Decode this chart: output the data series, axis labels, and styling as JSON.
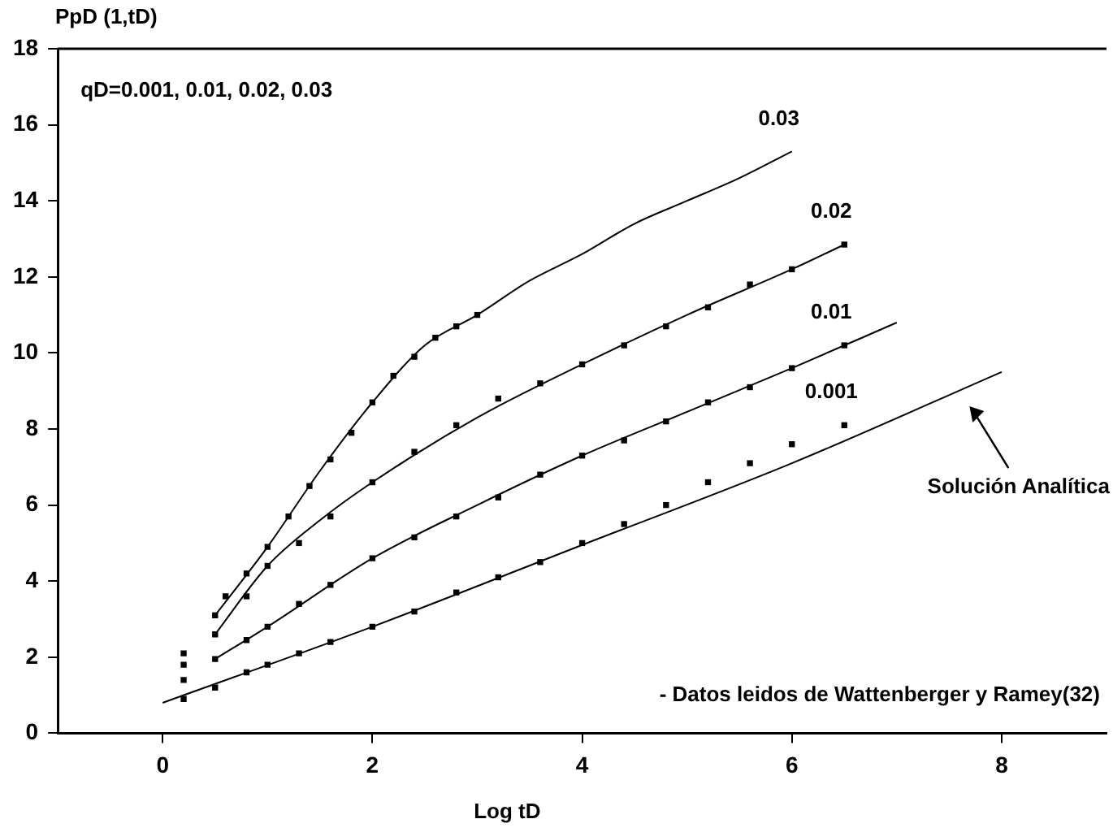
{
  "chart_data": {
    "type": "scatter",
    "ylabel": "PpD (1,tD)",
    "xlabel": "Log tD",
    "xlim": [
      -1,
      9
    ],
    "xticks": [
      0,
      2,
      4,
      6,
      8
    ],
    "ylim": [
      0,
      18
    ],
    "yticks": [
      0,
      2,
      4,
      6,
      8,
      10,
      12,
      14,
      16,
      18
    ],
    "grid": false,
    "legend": false,
    "series": [
      {
        "type": "line",
        "marker": "none",
        "color": "#000000",
        "x": [
          0,
          2,
          4,
          6,
          8
        ],
        "values": [
          0.8,
          2.8,
          4.95,
          7.1,
          9.5
        ]
      },
      {
        "type": "line",
        "marker": "none",
        "color": "#000000",
        "x": [
          0.5,
          1,
          2,
          3,
          4,
          5,
          6,
          7
        ],
        "values": [
          1.95,
          2.8,
          4.6,
          6.0,
          7.3,
          8.45,
          9.6,
          10.8
        ]
      },
      {
        "type": "line",
        "marker": "none",
        "color": "#000000",
        "x": [
          0.5,
          1,
          1.5,
          2,
          3,
          4,
          5,
          6,
          6.5
        ],
        "values": [
          2.6,
          4.4,
          5.6,
          6.6,
          8.3,
          9.7,
          11.0,
          12.2,
          12.85
        ]
      },
      {
        "type": "line",
        "name": "0.03",
        "marker": "none",
        "color": "#000000",
        "x": [
          0.5,
          1,
          1.5,
          2,
          2.5,
          3,
          3.5,
          4,
          4.5,
          5,
          5.5,
          6
        ],
        "values": [
          3.1,
          4.9,
          6.9,
          8.7,
          10.2,
          11.0,
          11.9,
          12.6,
          13.4,
          14.0,
          14.6,
          15.3
        ]
      },
      {
        "name": "0.001",
        "marker": "square",
        "color": "#000000",
        "x": [
          0.2,
          0.5,
          0.8,
          1.0,
          1.3,
          1.6,
          2.0,
          2.4,
          2.8,
          3.2,
          3.6,
          4.0,
          4.4,
          4.8,
          5.2,
          5.6,
          6.0,
          6.5
        ],
        "values": [
          0.9,
          1.2,
          1.6,
          1.8,
          2.1,
          2.4,
          2.8,
          3.2,
          3.7,
          4.1,
          4.5,
          5.0,
          5.5,
          6.0,
          6.6,
          7.1,
          7.6,
          8.1
        ]
      },
      {
        "name": "0.01",
        "marker": "square",
        "color": "#000000",
        "x": [
          0.2,
          0.5,
          0.8,
          1.0,
          1.3,
          1.6,
          2.0,
          2.4,
          2.8,
          3.2,
          3.6,
          4.0,
          4.4,
          4.8,
          5.2,
          5.6,
          6.0,
          6.5
        ],
        "values": [
          1.4,
          1.95,
          2.45,
          2.8,
          3.4,
          3.9,
          4.6,
          5.15,
          5.7,
          6.2,
          6.8,
          7.3,
          7.7,
          8.2,
          8.7,
          9.1,
          9.6,
          10.2
        ]
      },
      {
        "name": "0.02",
        "marker": "square",
        "color": "#000000",
        "x": [
          0.2,
          0.5,
          0.8,
          1.0,
          1.3,
          1.6,
          2.0,
          2.4,
          2.8,
          3.2,
          3.6,
          4.0,
          4.4,
          4.8,
          5.2,
          5.6,
          6.0,
          6.5
        ],
        "values": [
          1.8,
          2.6,
          3.6,
          4.4,
          5.0,
          5.7,
          6.6,
          7.4,
          8.1,
          8.8,
          9.2,
          9.7,
          10.2,
          10.7,
          11.2,
          11.8,
          12.2,
          12.85
        ]
      },
      {
        "marker": "square",
        "color": "#000000",
        "x": [
          0.2,
          0.5,
          0.6,
          0.8,
          1.0,
          1.2,
          1.4,
          1.6,
          1.8,
          2.0,
          2.2,
          2.4,
          2.6,
          2.8,
          3.0
        ],
        "values": [
          2.1,
          3.1,
          3.6,
          4.2,
          4.9,
          5.7,
          6.5,
          7.2,
          7.9,
          8.7,
          9.4,
          9.9,
          10.4,
          10.7,
          11.0
        ]
      }
    ],
    "annotations": [
      "qD=0.001, 0.01, 0.02, 0.03",
      "- Datos leidos de Wattenberger y Ramey(32)",
      "Solución Analítica"
    ]
  }
}
